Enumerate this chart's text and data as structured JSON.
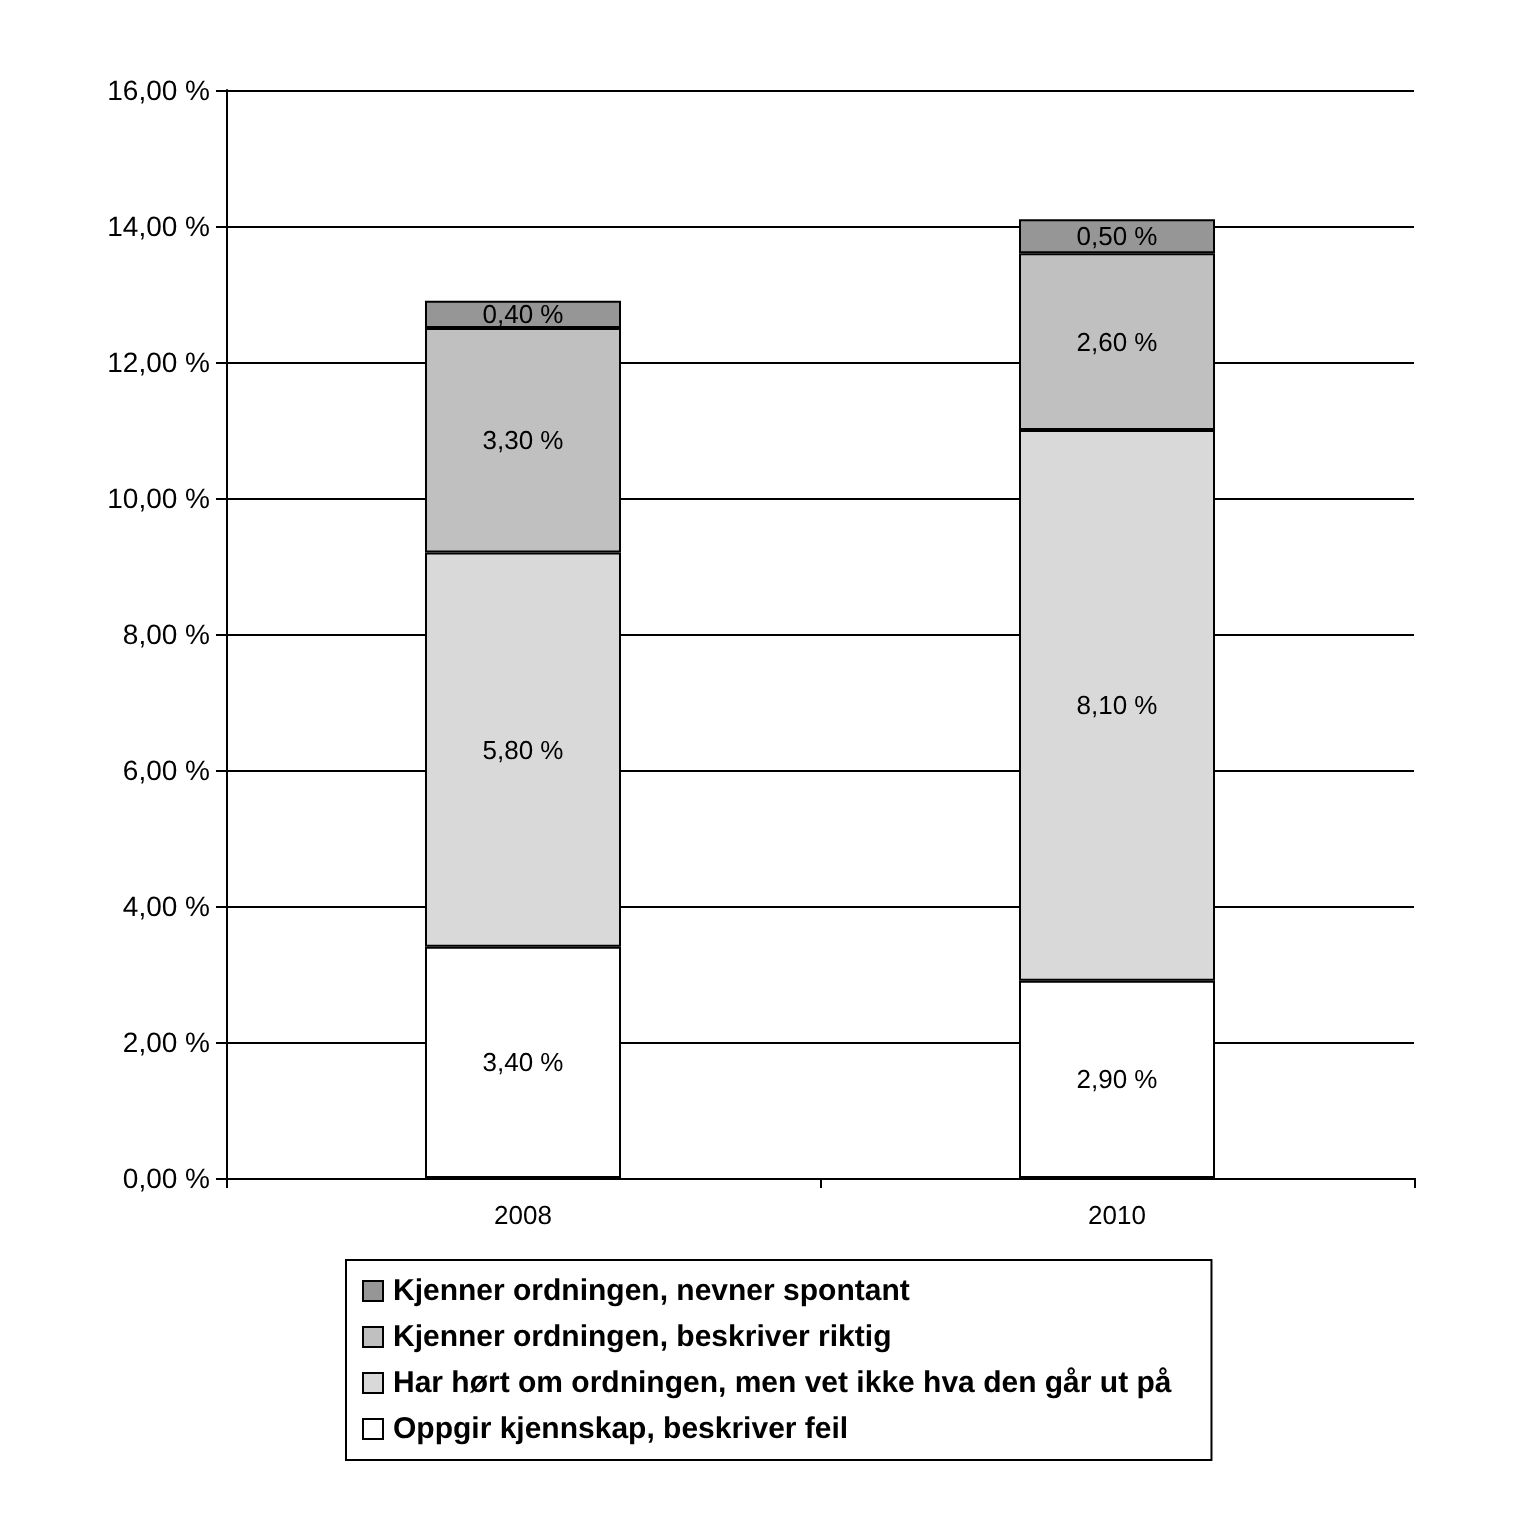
{
  "chart_data": {
    "type": "bar",
    "stacked": true,
    "categories": [
      "2008",
      "2010"
    ],
    "series": [
      {
        "name": "Oppgir kjennskap, beskriver feil",
        "color": "#ffffff",
        "values": [
          3.4,
          2.9
        ],
        "value_labels": [
          "3,40 %",
          "2,90 %"
        ]
      },
      {
        "name": "Har hørt om ordningen, men vet ikke hva den går ut på",
        "color": "#d9d9d9",
        "values": [
          5.8,
          8.1
        ],
        "value_labels": [
          "5,80 %",
          "8,10 %"
        ]
      },
      {
        "name": "Kjenner ordningen, beskriver riktig",
        "color": "#c0c0c0",
        "values": [
          3.3,
          2.6
        ],
        "value_labels": [
          "3,30 %",
          "2,60 %"
        ]
      },
      {
        "name": "Kjenner ordningen, nevner spontant",
        "color": "#969696",
        "values": [
          0.4,
          0.5
        ],
        "value_labels": [
          "0,40 %",
          "0,50 %"
        ]
      }
    ],
    "ylim": [
      0,
      16
    ],
    "yticks": [
      {
        "value": 0,
        "label": "0,00 %"
      },
      {
        "value": 2,
        "label": "2,00 %"
      },
      {
        "value": 4,
        "label": "4,00 %"
      },
      {
        "value": 6,
        "label": "6,00 %"
      },
      {
        "value": 8,
        "label": "8,00 %"
      },
      {
        "value": 10,
        "label": "10,00 %"
      },
      {
        "value": 12,
        "label": "12,00 %"
      },
      {
        "value": 14,
        "label": "14,00 %"
      },
      {
        "value": 16,
        "label": "16,00 %"
      }
    ],
    "grid": "y",
    "legend": "bottom"
  }
}
